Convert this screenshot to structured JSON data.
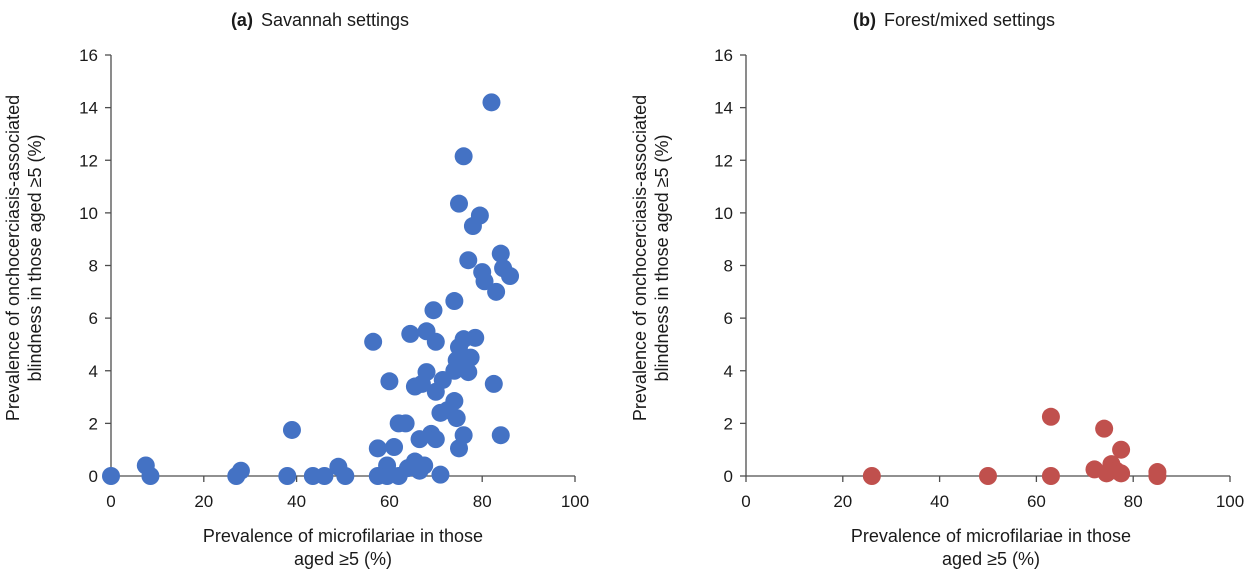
{
  "chart_data": [
    {
      "type": "scatter",
      "panel_letter": "(a)",
      "title": "Savannah settings",
      "xlabel": [
        "Prevalence of microfilariae in those",
        "aged ≥5 (%)"
      ],
      "ylabel": [
        "Prevalence of onchocerciasis-associated",
        "blindness in those aged ≥5 (%)"
      ],
      "xlim": [
        0,
        100
      ],
      "ylim": [
        0,
        16
      ],
      "xticks": [
        0,
        20,
        40,
        60,
        80,
        100
      ],
      "yticks": [
        0,
        2,
        4,
        6,
        8,
        10,
        12,
        14,
        16
      ],
      "grid": false,
      "color": "#4472C4",
      "points": [
        {
          "x": 0,
          "y": 0
        },
        {
          "x": 7.5,
          "y": 0.4
        },
        {
          "x": 8.5,
          "y": 0
        },
        {
          "x": 27,
          "y": 0
        },
        {
          "x": 28,
          "y": 0.2
        },
        {
          "x": 38,
          "y": 0
        },
        {
          "x": 39,
          "y": 1.75
        },
        {
          "x": 43.5,
          "y": 0
        },
        {
          "x": 46,
          "y": 0
        },
        {
          "x": 49,
          "y": 0.35
        },
        {
          "x": 50.5,
          "y": 0
        },
        {
          "x": 56.5,
          "y": 5.1
        },
        {
          "x": 57.5,
          "y": 1.05
        },
        {
          "x": 57.5,
          "y": 0
        },
        {
          "x": 59.5,
          "y": 0.4
        },
        {
          "x": 59.5,
          "y": 0
        },
        {
          "x": 60,
          "y": 3.6
        },
        {
          "x": 61,
          "y": 1.1
        },
        {
          "x": 62,
          "y": 2
        },
        {
          "x": 62,
          "y": 0
        },
        {
          "x": 63.5,
          "y": 2
        },
        {
          "x": 64,
          "y": 0.3
        },
        {
          "x": 64.5,
          "y": 5.4
        },
        {
          "x": 65.5,
          "y": 3.4
        },
        {
          "x": 65.5,
          "y": 0.55
        },
        {
          "x": 66.5,
          "y": 1.4
        },
        {
          "x": 66.5,
          "y": 0.2
        },
        {
          "x": 67,
          "y": 3.5
        },
        {
          "x": 67.5,
          "y": 0.4
        },
        {
          "x": 68,
          "y": 5.5
        },
        {
          "x": 68,
          "y": 3.95
        },
        {
          "x": 69,
          "y": 1.6
        },
        {
          "x": 69.5,
          "y": 6.3
        },
        {
          "x": 70,
          "y": 5.1
        },
        {
          "x": 70,
          "y": 3.2
        },
        {
          "x": 70,
          "y": 1.4
        },
        {
          "x": 71,
          "y": 0.05
        },
        {
          "x": 71,
          "y": 2.4
        },
        {
          "x": 71.5,
          "y": 3.65
        },
        {
          "x": 72.5,
          "y": 2.5
        },
        {
          "x": 74,
          "y": 6.65
        },
        {
          "x": 74,
          "y": 4.0
        },
        {
          "x": 74,
          "y": 2.85
        },
        {
          "x": 74.5,
          "y": 2.2
        },
        {
          "x": 74.5,
          "y": 4.4
        },
        {
          "x": 75,
          "y": 4.9
        },
        {
          "x": 75,
          "y": 1.05
        },
        {
          "x": 75,
          "y": 10.35
        },
        {
          "x": 76,
          "y": 5.2
        },
        {
          "x": 76,
          "y": 12.15
        },
        {
          "x": 76,
          "y": 1.55
        },
        {
          "x": 76.5,
          "y": 4.4
        },
        {
          "x": 77,
          "y": 3.95
        },
        {
          "x": 77,
          "y": 8.2
        },
        {
          "x": 77.5,
          "y": 4.5
        },
        {
          "x": 78,
          "y": 9.5
        },
        {
          "x": 78.5,
          "y": 5.25
        },
        {
          "x": 79.5,
          "y": 9.9
        },
        {
          "x": 80,
          "y": 7.75
        },
        {
          "x": 80.5,
          "y": 7.4
        },
        {
          "x": 82,
          "y": 14.2
        },
        {
          "x": 82.5,
          "y": 3.5
        },
        {
          "x": 83,
          "y": 7.0
        },
        {
          "x": 84,
          "y": 8.45
        },
        {
          "x": 84,
          "y": 1.55
        },
        {
          "x": 84.5,
          "y": 7.9
        },
        {
          "x": 86,
          "y": 7.6
        }
      ]
    },
    {
      "type": "scatter",
      "panel_letter": "(b)",
      "title": "Forest/mixed settings",
      "xlabel": [
        "Prevalence of microfilariae in those",
        "aged ≥5 (%)"
      ],
      "ylabel": [
        "Prevalence of onchocerciasis-associated",
        "blindness in those aged ≥5 (%)"
      ],
      "xlim": [
        0,
        100
      ],
      "ylim": [
        0,
        16
      ],
      "xticks": [
        0,
        20,
        40,
        60,
        80,
        100
      ],
      "yticks": [
        0,
        2,
        4,
        6,
        8,
        10,
        12,
        14,
        16
      ],
      "grid": false,
      "color": "#C0504D",
      "points": [
        {
          "x": 26,
          "y": 0
        },
        {
          "x": 50,
          "y": 0
        },
        {
          "x": 63,
          "y": 2.25
        },
        {
          "x": 63,
          "y": 0
        },
        {
          "x": 72,
          "y": 0.25
        },
        {
          "x": 74,
          "y": 1.8
        },
        {
          "x": 74.5,
          "y": 0.1
        },
        {
          "x": 75.5,
          "y": 0.45
        },
        {
          "x": 76.5,
          "y": 0.2
        },
        {
          "x": 77.5,
          "y": 1.0
        },
        {
          "x": 77.5,
          "y": 0.1
        },
        {
          "x": 85,
          "y": 0.15
        },
        {
          "x": 85,
          "y": 0
        }
      ]
    }
  ]
}
